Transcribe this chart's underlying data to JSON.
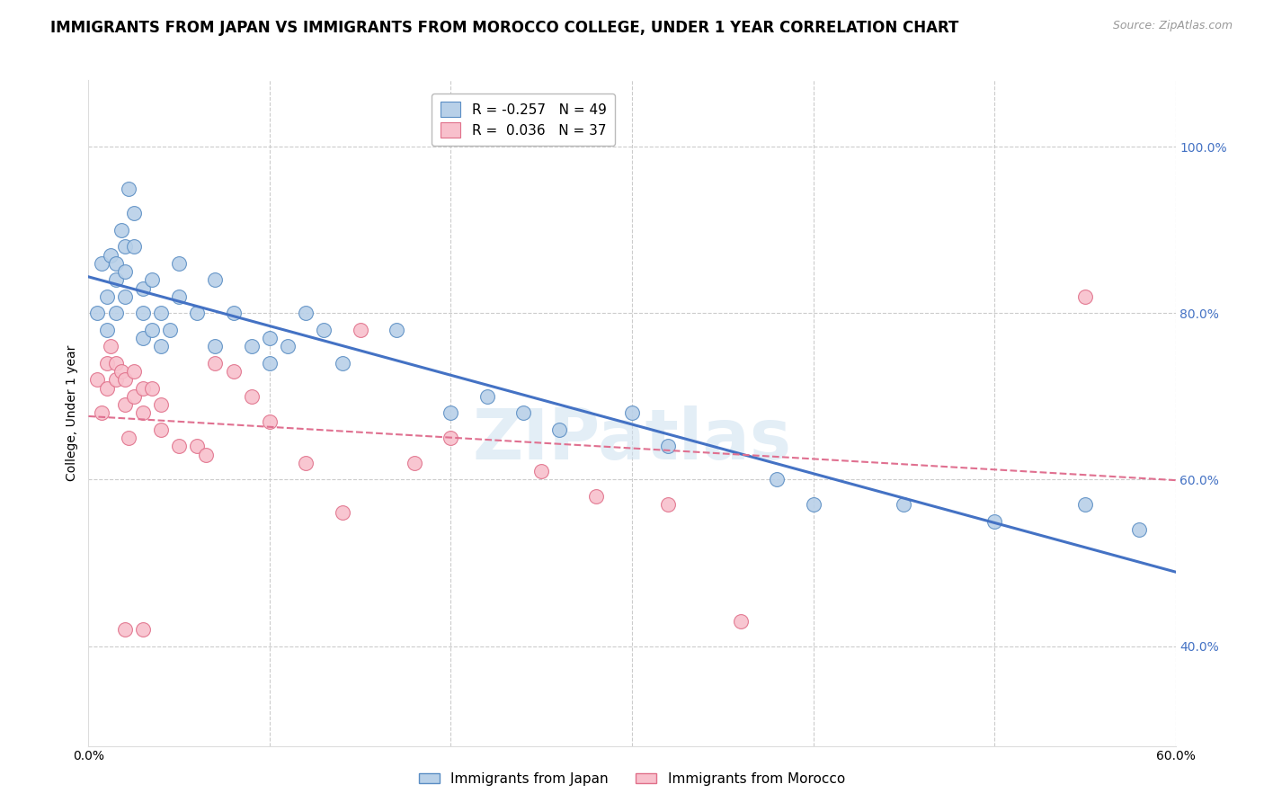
{
  "title": "IMMIGRANTS FROM JAPAN VS IMMIGRANTS FROM MOROCCO COLLEGE, UNDER 1 YEAR CORRELATION CHART",
  "source": "Source: ZipAtlas.com",
  "ylabel": "College, Under 1 year",
  "xlim": [
    0.0,
    0.6
  ],
  "ylim": [
    0.28,
    1.08
  ],
  "yticks_right": [
    0.4,
    0.6,
    0.8,
    1.0
  ],
  "ytick_labels_right": [
    "40.0%",
    "60.0%",
    "80.0%",
    "100.0%"
  ],
  "legend_japan_r": "-0.257",
  "legend_japan_n": "49",
  "legend_morocco_r": "0.036",
  "legend_morocco_n": "37",
  "japan_color": "#b8d0e8",
  "japan_edge_color": "#5b8ec4",
  "morocco_color": "#f8c0cc",
  "morocco_edge_color": "#e0708a",
  "japan_line_color": "#4472c4",
  "morocco_line_color": "#e07090",
  "background_color": "#ffffff",
  "grid_color": "#cccccc",
  "japan_points_x": [
    0.005,
    0.007,
    0.01,
    0.01,
    0.012,
    0.015,
    0.015,
    0.015,
    0.018,
    0.02,
    0.02,
    0.02,
    0.022,
    0.025,
    0.025,
    0.03,
    0.03,
    0.03,
    0.035,
    0.035,
    0.04,
    0.04,
    0.045,
    0.05,
    0.05,
    0.06,
    0.07,
    0.07,
    0.08,
    0.09,
    0.1,
    0.1,
    0.11,
    0.12,
    0.13,
    0.14,
    0.17,
    0.2,
    0.22,
    0.24,
    0.26,
    0.3,
    0.32,
    0.38,
    0.4,
    0.45,
    0.5,
    0.55,
    0.58
  ],
  "japan_points_y": [
    0.8,
    0.86,
    0.82,
    0.78,
    0.87,
    0.86,
    0.84,
    0.8,
    0.9,
    0.88,
    0.85,
    0.82,
    0.95,
    0.92,
    0.88,
    0.83,
    0.8,
    0.77,
    0.84,
    0.78,
    0.8,
    0.76,
    0.78,
    0.86,
    0.82,
    0.8,
    0.84,
    0.76,
    0.8,
    0.76,
    0.77,
    0.74,
    0.76,
    0.8,
    0.78,
    0.74,
    0.78,
    0.68,
    0.7,
    0.68,
    0.66,
    0.68,
    0.64,
    0.6,
    0.57,
    0.57,
    0.55,
    0.57,
    0.54
  ],
  "morocco_points_x": [
    0.005,
    0.007,
    0.01,
    0.01,
    0.012,
    0.015,
    0.015,
    0.018,
    0.02,
    0.02,
    0.022,
    0.025,
    0.025,
    0.03,
    0.03,
    0.035,
    0.04,
    0.04,
    0.05,
    0.06,
    0.065,
    0.07,
    0.08,
    0.09,
    0.1,
    0.12,
    0.14,
    0.15,
    0.18,
    0.2,
    0.25,
    0.28,
    0.32,
    0.36,
    0.55,
    0.02,
    0.03
  ],
  "morocco_points_y": [
    0.72,
    0.68,
    0.74,
    0.71,
    0.76,
    0.74,
    0.72,
    0.73,
    0.72,
    0.69,
    0.65,
    0.73,
    0.7,
    0.71,
    0.68,
    0.71,
    0.69,
    0.66,
    0.64,
    0.64,
    0.63,
    0.74,
    0.73,
    0.7,
    0.67,
    0.62,
    0.56,
    0.78,
    0.62,
    0.65,
    0.61,
    0.58,
    0.57,
    0.43,
    0.82,
    0.42,
    0.42
  ],
  "watermark": "ZIPatlas",
  "title_fontsize": 12,
  "axis_fontsize": 10,
  "tick_fontsize": 10,
  "right_tick_color": "#4472c4"
}
